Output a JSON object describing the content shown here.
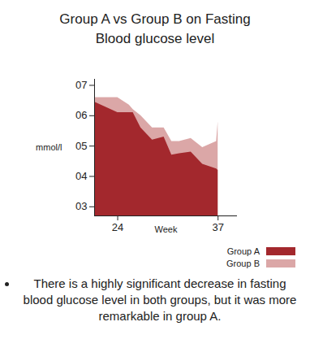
{
  "chart_data": {
    "type": "area",
    "title": "Group A vs Group B on Fasting Blood glucose level",
    "x_label": "Week",
    "y_label": "mmol/l",
    "x": [
      21,
      24,
      25.5,
      26,
      27,
      28.5,
      30,
      31,
      32,
      33.5,
      35,
      36.8,
      37
    ],
    "series": [
      {
        "name": "Group B",
        "color": "#dba7a7",
        "values": [
          6.6,
          6.6,
          6.35,
          6.2,
          6.0,
          5.6,
          5.6,
          5.15,
          5.15,
          5.25,
          4.95,
          5.15,
          5.8
        ]
      },
      {
        "name": "Group A",
        "color": "#a3282d",
        "values": [
          6.45,
          6.1,
          6.1,
          6.1,
          5.6,
          5.2,
          5.3,
          4.7,
          4.75,
          4.8,
          4.4,
          4.25,
          4.2
        ]
      }
    ],
    "xlim": [
      21,
      39.5
    ],
    "xticks": [
      24,
      37
    ],
    "ylim": [
      2.7,
      7.2
    ],
    "yticks": [
      {
        "value": 3,
        "label": "03"
      },
      {
        "value": 4,
        "label": "04"
      },
      {
        "value": 5,
        "label": "05"
      },
      {
        "value": 6,
        "label": "06"
      },
      {
        "value": 7,
        "label": "07"
      }
    ],
    "grid": false,
    "legend": "bottom-right",
    "annotations": [
      "There is a highly significant decrease in fasting blood glucose level in both groups, but it was more remarkable in group A."
    ]
  }
}
